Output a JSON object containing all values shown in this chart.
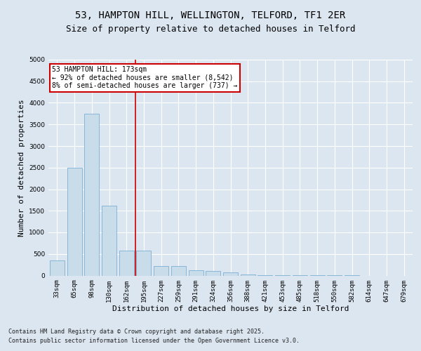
{
  "title_line1": "53, HAMPTON HILL, WELLINGTON, TELFORD, TF1 2ER",
  "title_line2": "Size of property relative to detached houses in Telford",
  "xlabel": "Distribution of detached houses by size in Telford",
  "ylabel": "Number of detached properties",
  "categories": [
    "33sqm",
    "65sqm",
    "98sqm",
    "130sqm",
    "162sqm",
    "195sqm",
    "227sqm",
    "259sqm",
    "291sqm",
    "324sqm",
    "356sqm",
    "388sqm",
    "421sqm",
    "453sqm",
    "485sqm",
    "518sqm",
    "550sqm",
    "582sqm",
    "614sqm",
    "647sqm",
    "679sqm"
  ],
  "values": [
    350,
    2500,
    3750,
    1625,
    575,
    575,
    225,
    225,
    125,
    100,
    75,
    30,
    10,
    5,
    3,
    2,
    1,
    1,
    0,
    0,
    0
  ],
  "bar_color": "#c9dcea",
  "bar_edge_color": "#7bafd4",
  "vline_x": 4.5,
  "vline_color": "#cc0000",
  "annotation_text": "53 HAMPTON HILL: 173sqm\n← 92% of detached houses are smaller (8,542)\n8% of semi-detached houses are larger (737) →",
  "annotation_box_color": "#ffffff",
  "annotation_box_edge": "#cc0000",
  "ylim": [
    0,
    5000
  ],
  "yticks": [
    0,
    500,
    1000,
    1500,
    2000,
    2500,
    3000,
    3500,
    4000,
    4500,
    5000
  ],
  "background_color": "#dce6f0",
  "plot_bg_color": "#dce6f0",
  "footer_line1": "Contains HM Land Registry data © Crown copyright and database right 2025.",
  "footer_line2": "Contains public sector information licensed under the Open Government Licence v3.0.",
  "title_fontsize": 10,
  "subtitle_fontsize": 9,
  "tick_fontsize": 6.5,
  "label_fontsize": 8,
  "annotation_fontsize": 7,
  "footer_fontsize": 6
}
